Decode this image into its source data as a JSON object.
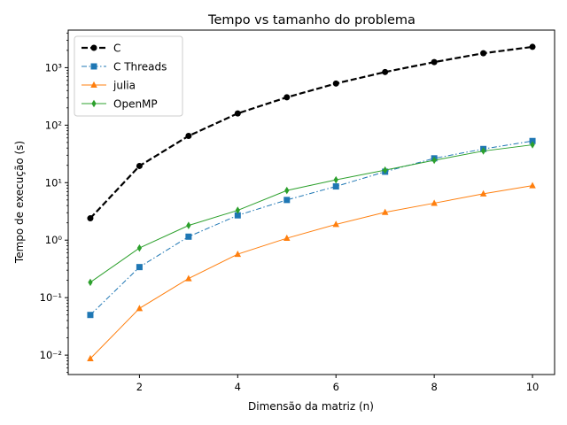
{
  "chart_data": {
    "type": "line",
    "title": "Tempo vs tamanho do problema",
    "xlabel": "Dimensão da matriz (n)",
    "ylabel": "Tempo de execução (s)",
    "xlim": [
      0.55,
      10.45
    ],
    "ylim": [
      0.0046,
      4500
    ],
    "y_scale": "log",
    "grid": false,
    "legend_position": "top-left",
    "x_ticks": [
      2,
      4,
      6,
      8,
      10
    ],
    "x_tick_labels": [
      "2",
      "4",
      "6",
      "8",
      "10"
    ],
    "y_ticks": [
      0.01,
      0.1,
      1,
      10,
      100,
      1000
    ],
    "y_tick_labels": [
      "10⁻²",
      "10⁻¹",
      "10⁰",
      "10¹",
      "10²",
      "10³"
    ],
    "x": [
      1,
      2,
      3,
      4,
      5,
      6,
      7,
      8,
      9,
      10
    ],
    "series": [
      {
        "name": "C",
        "color": "#000000",
        "marker": "circle",
        "line_style": "dashed",
        "values": [
          2.4,
          19.5,
          65,
          160,
          305,
          530,
          840,
          1250,
          1780,
          2300
        ]
      },
      {
        "name": "C Threads",
        "color": "#1f77b4",
        "marker": "square",
        "line_style": "dash-dot",
        "values": [
          0.05,
          0.34,
          1.15,
          2.7,
          5.0,
          8.6,
          15.5,
          26.5,
          38.5,
          53
        ]
      },
      {
        "name": "julia",
        "color": "#ff7f0e",
        "marker": "triangle",
        "line_style": "solid",
        "values": [
          0.0087,
          0.065,
          0.215,
          0.57,
          1.08,
          1.88,
          3.05,
          4.4,
          6.4,
          8.9
        ]
      },
      {
        "name": "OpenMP",
        "color": "#2ca02c",
        "marker": "diamond",
        "line_style": "solid",
        "values": [
          0.185,
          0.73,
          1.8,
          3.3,
          7.3,
          11.2,
          16.5,
          24.5,
          35.5,
          45.5
        ]
      }
    ]
  }
}
